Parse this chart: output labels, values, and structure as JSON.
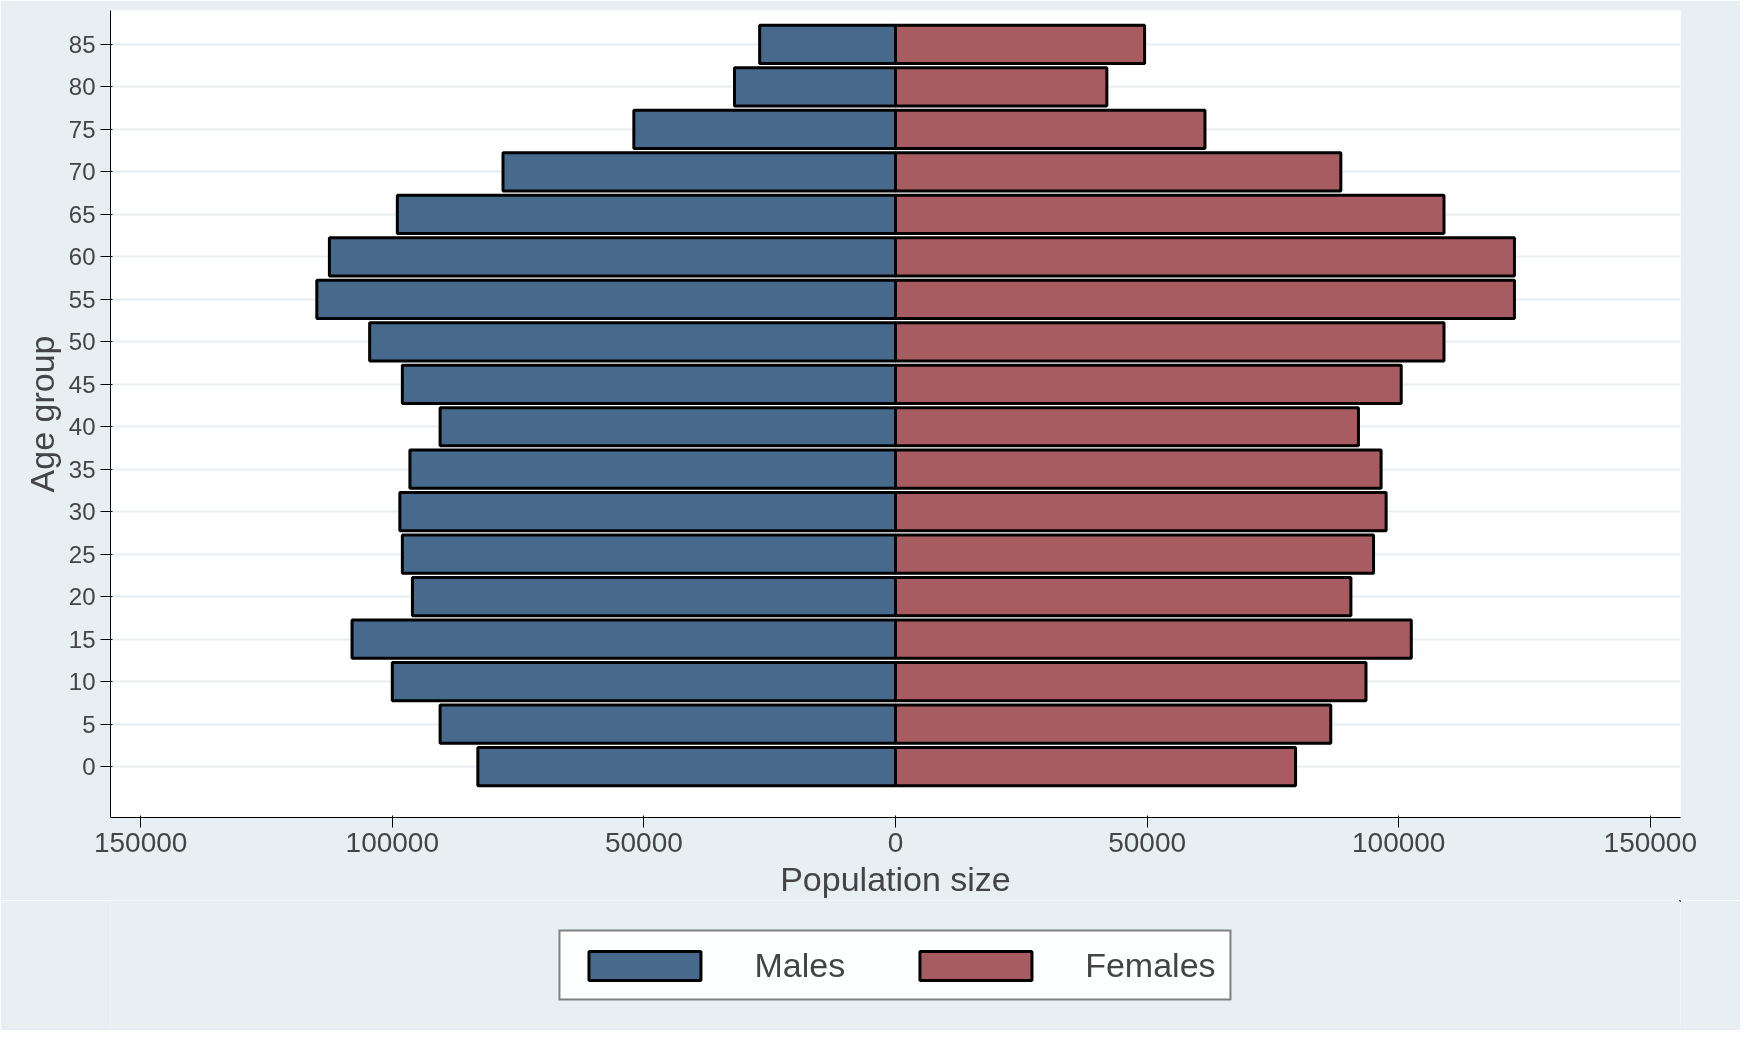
{
  "chart_data": {
    "type": "bar",
    "orientation": "horizontal",
    "xlabel": "Population size",
    "ylabel": "Age group",
    "categories": [
      "85",
      "80",
      "75",
      "70",
      "65",
      "60",
      "55",
      "50",
      "45",
      "40",
      "35",
      "30",
      "25",
      "20",
      "15",
      "10",
      "5",
      "0"
    ],
    "series": [
      {
        "name": "Males",
        "color": "#46698c",
        "values": [
          -27000,
          -32000,
          -52000,
          -78000,
          -99000,
          -112500,
          -115000,
          -104500,
          -98000,
          -90500,
          -96500,
          -98500,
          -98000,
          -96000,
          -108000,
          -100000,
          -90500,
          -83000
        ]
      },
      {
        "name": "Females",
        "color": "#a65c61",
        "values": [
          49500,
          42000,
          61500,
          88500,
          109000,
          123000,
          123000,
          109000,
          100500,
          92000,
          96500,
          97500,
          95000,
          90500,
          102500,
          93500,
          86500,
          79500
        ]
      }
    ],
    "xlim": [
      -156000,
      156000
    ],
    "xticks": [
      {
        "value": -150000,
        "label": "150000"
      },
      {
        "value": -100000,
        "label": "100000"
      },
      {
        "value": -50000,
        "label": "50000"
      },
      0,
      50000,
      100000,
      150000
    ],
    "stacked": true,
    "grid": "y",
    "legend": "bottom"
  }
}
